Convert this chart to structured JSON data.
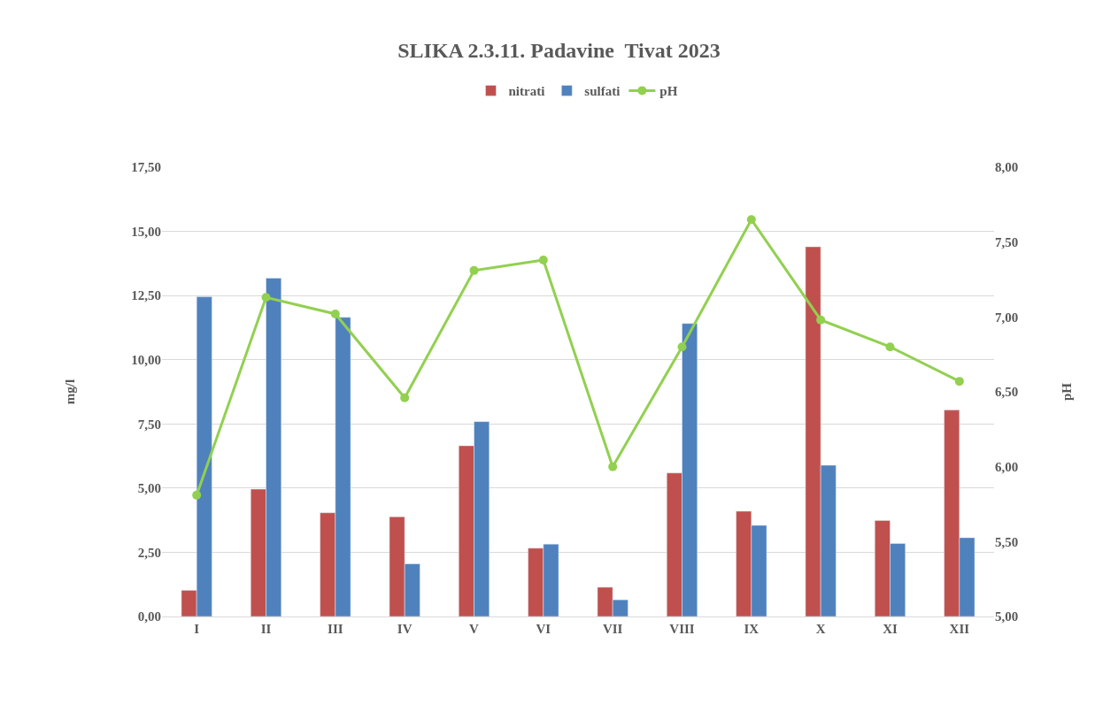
{
  "chart_data": {
    "type": "bar",
    "title": "SLIKA 2.3.11. Padavine  Tivat 2023",
    "ylabel": "mg/l",
    "y2label": "pH",
    "categories": [
      "I",
      "II",
      "III",
      "IV",
      "V",
      "VI",
      "VII",
      "VIII",
      "IX",
      "X",
      "XI",
      "XII"
    ],
    "series": [
      {
        "name": "nitrati",
        "color": "#c0504d",
        "values": [
          1.02,
          4.96,
          4.04,
          3.88,
          6.65,
          2.66,
          1.14,
          5.59,
          4.1,
          14.4,
          3.74,
          8.04
        ]
      },
      {
        "name": "sulfati",
        "color": "#4f81bd",
        "values": [
          12.45,
          13.18,
          11.65,
          2.05,
          7.59,
          2.82,
          0.65,
          11.41,
          3.55,
          5.89,
          2.84,
          3.07
        ]
      },
      {
        "name": "pH",
        "type": "line",
        "axis": "y2",
        "color": "#92d050",
        "marker": "circle",
        "values": [
          5.81,
          7.13,
          7.02,
          6.46,
          7.31,
          7.38,
          6.0,
          6.8,
          7.65,
          6.98,
          6.8,
          6.57
        ]
      }
    ],
    "ylim": [
      0,
      17.5
    ],
    "yticks": [
      {
        "value": 0,
        "label": "0,00"
      },
      {
        "value": 2.5,
        "label": "2,50"
      },
      {
        "value": 5,
        "label": "5,00"
      },
      {
        "value": 7.5,
        "label": "7,50"
      },
      {
        "value": 10,
        "label": "10,00"
      },
      {
        "value": 12.5,
        "label": "12,50"
      },
      {
        "value": 15,
        "label": "15,00"
      },
      {
        "value": 17.5,
        "label": "17,50"
      }
    ],
    "y2lim": [
      5,
      8
    ],
    "y2ticks": [
      {
        "value": 5,
        "label": "5,00"
      },
      {
        "value": 5.5,
        "label": "5,50"
      },
      {
        "value": 6,
        "label": "6,00"
      },
      {
        "value": 6.5,
        "label": "6,50"
      },
      {
        "value": 7,
        "label": "7,00"
      },
      {
        "value": 7.5,
        "label": "7,50"
      },
      {
        "value": 8,
        "label": "8,00"
      }
    ],
    "grid": "y",
    "legend": "top"
  }
}
